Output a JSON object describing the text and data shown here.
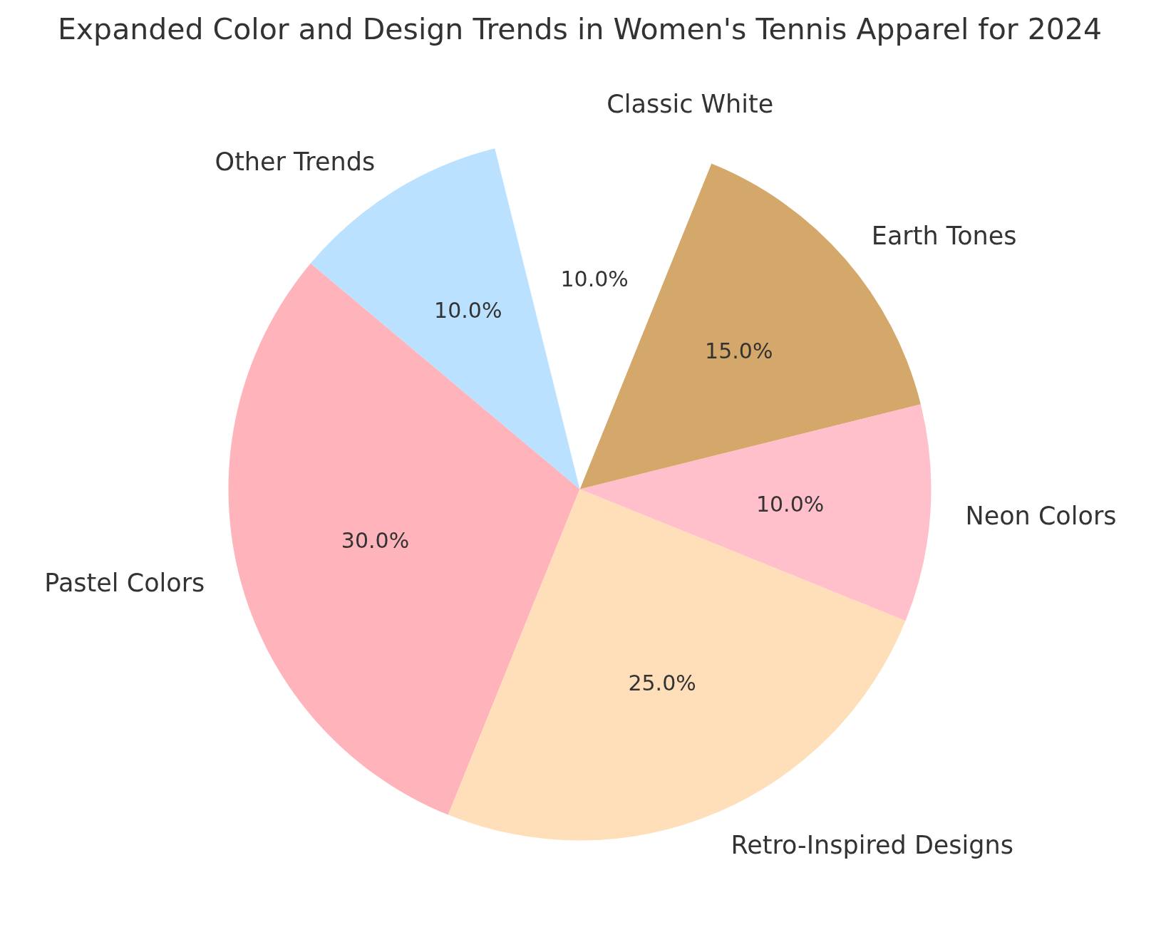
{
  "chart_data": {
    "type": "pie",
    "title": "Expanded Color and Design Trends in Women's Tennis Apparel for 2024",
    "categories": [
      "Pastel Colors",
      "Retro-Inspired Designs",
      "Neon Colors",
      "Earth Tones",
      "Classic White",
      "Other Trends"
    ],
    "values": [
      30,
      25,
      10,
      15,
      10,
      10
    ],
    "colors": [
      "#ffb3ba",
      "#ffdfba",
      "#ffc0cb",
      "#d4a76a",
      "#ffffff",
      "#bae1ff"
    ],
    "value_labels": [
      "30.0%",
      "25.0%",
      "10.0%",
      "15.0%",
      "10.0%",
      "10.0%"
    ]
  }
}
